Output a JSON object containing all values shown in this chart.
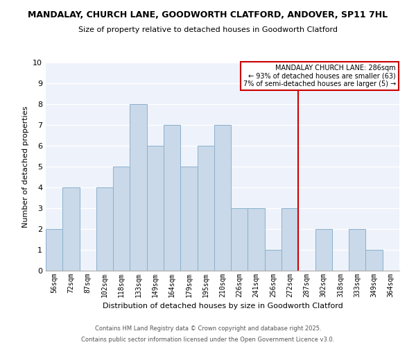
{
  "title": "MANDALAY, CHURCH LANE, GOODWORTH CLATFORD, ANDOVER, SP11 7HL",
  "subtitle": "Size of property relative to detached houses in Goodworth Clatford",
  "xlabel": "Distribution of detached houses by size in Goodworth Clatford",
  "ylabel": "Number of detached properties",
  "bin_labels": [
    "56sqm",
    "72sqm",
    "87sqm",
    "102sqm",
    "118sqm",
    "133sqm",
    "149sqm",
    "164sqm",
    "179sqm",
    "195sqm",
    "210sqm",
    "226sqm",
    "241sqm",
    "256sqm",
    "272sqm",
    "287sqm",
    "302sqm",
    "318sqm",
    "333sqm",
    "349sqm",
    "364sqm"
  ],
  "bar_values": [
    2,
    4,
    0,
    4,
    5,
    8,
    6,
    7,
    5,
    6,
    7,
    3,
    3,
    1,
    3,
    0,
    2,
    0,
    2,
    1,
    0
  ],
  "bar_color": "#c9d9e9",
  "bar_edgecolor": "#8ab0cc",
  "vline_x_index": 15,
  "vline_color": "#cc0000",
  "ylim": [
    0,
    10
  ],
  "yticks": [
    0,
    1,
    2,
    3,
    4,
    5,
    6,
    7,
    8,
    9,
    10
  ],
  "legend_title": "MANDALAY CHURCH LANE: 286sqm",
  "legend_line1": "← 93% of detached houses are smaller (63)",
  "legend_line2": "7% of semi-detached houses are larger (5) →",
  "legend_edgecolor": "#cc0000",
  "footer1": "Contains HM Land Registry data © Crown copyright and database right 2025.",
  "footer2": "Contains public sector information licensed under the Open Government Licence v3.0.",
  "plot_bg_color": "#eef2fb",
  "fig_bg_color": "#ffffff",
  "grid_color": "#ffffff"
}
